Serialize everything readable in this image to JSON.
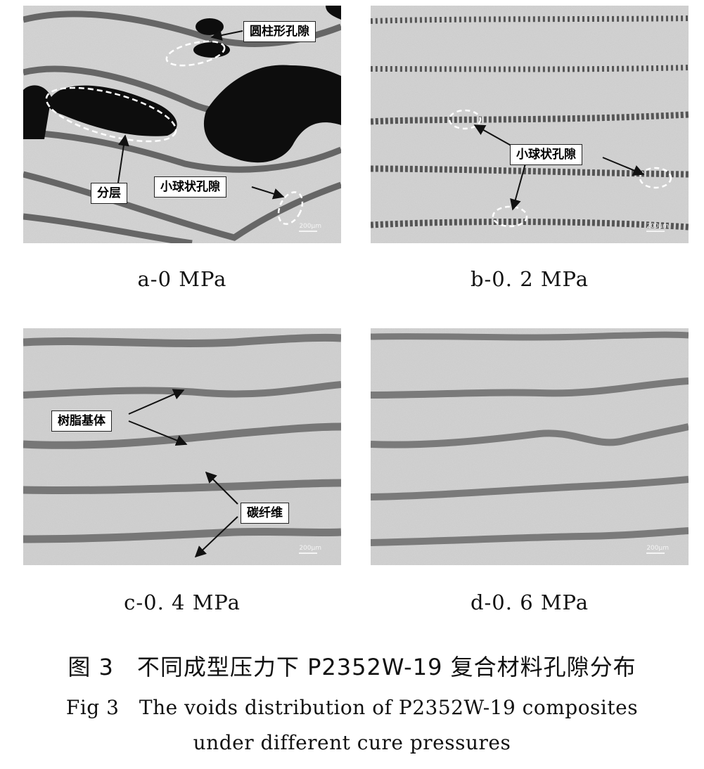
{
  "panels": {
    "a": {
      "caption": "a-0 MPa",
      "labels": {
        "cylindrical_void": "圆柱形孔隙",
        "delamination": "分层",
        "small_spherical_void": "小球状孔隙"
      },
      "scale": "200μm"
    },
    "b": {
      "caption": "b-0. 2 MPa",
      "labels": {
        "small_spherical_void": "小球状孔隙"
      },
      "scale": "200μm"
    },
    "c": {
      "caption": "c-0. 4 MPa",
      "labels": {
        "resin_matrix": "树脂基体",
        "carbon_fiber": "碳纤维"
      },
      "scale": "200μm"
    },
    "d": {
      "caption": "d-0. 6 MPa",
      "scale": "200μm"
    }
  },
  "figure": {
    "title_cn": "图 3　不同成型压力下 P2352W-19 复合材料孔隙分布",
    "title_en_line1": "Fig 3　The voids distribution of P2352W-19 composites",
    "title_en_line2": "under different cure pressures"
  },
  "colors": {
    "fiber": "#d4d4d4",
    "resin": "#6e6e6e",
    "void": "#0d0d0d",
    "label_bg": "#ffffff"
  }
}
